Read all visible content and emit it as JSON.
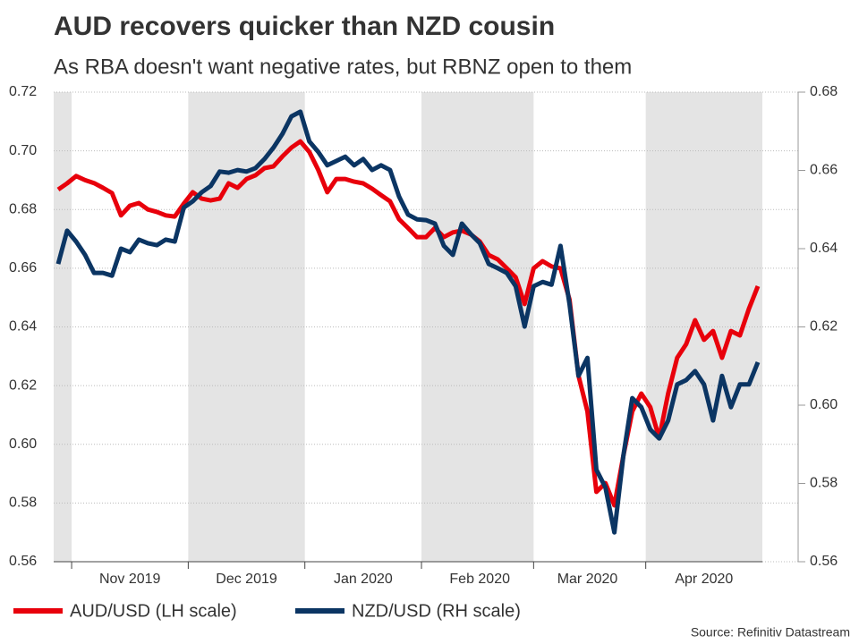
{
  "chart_data": {
    "type": "line",
    "title": "AUD recovers quicker than NZD cousin",
    "subtitle": "As RBA doesn't want negative rates, but RBNZ open to them",
    "source": "Source: Refinitiv Datastream",
    "categories": [
      null,
      null,
      null,
      null,
      null,
      null,
      null,
      null,
      "Nov 2019",
      null,
      null,
      null,
      null,
      null,
      null,
      null,
      null,
      null,
      null,
      null,
      null,
      "Dec 2019",
      null,
      null,
      null,
      null,
      null,
      null,
      null,
      null,
      null,
      null,
      null,
      null,
      "Jan 2020",
      null,
      null,
      null,
      null,
      null,
      null,
      null,
      null,
      null,
      null,
      null,
      null,
      "Feb 2020",
      null,
      null,
      null,
      null,
      null,
      null,
      null,
      null,
      null,
      null,
      null,
      "Mar 2020",
      null,
      null,
      null,
      null,
      null,
      null,
      null,
      null,
      null,
      null,
      null,
      null,
      "Apr 2020",
      null,
      null,
      null,
      null,
      null,
      null
    ],
    "series": [
      {
        "name": "AUD/USD (LH scale)",
        "color": "#e8000b",
        "axis": "y",
        "values": [
          0.6868,
          0.6889,
          0.6914,
          0.69,
          0.689,
          0.6874,
          0.6856,
          0.678,
          0.6813,
          0.6822,
          0.68,
          0.6792,
          0.678,
          0.6776,
          0.682,
          0.6859,
          0.6837,
          0.6831,
          0.6837,
          0.6889,
          0.6874,
          0.6904,
          0.6917,
          0.6941,
          0.6947,
          0.6981,
          0.7011,
          0.7032,
          0.6996,
          0.6935,
          0.6859,
          0.6904,
          0.6904,
          0.6895,
          0.6889,
          0.6871,
          0.6849,
          0.6828,
          0.6767,
          0.6737,
          0.6706,
          0.6706,
          0.6737,
          0.6706,
          0.6722,
          0.6728,
          0.6715,
          0.6691,
          0.6645,
          0.663,
          0.66,
          0.6569,
          0.6478,
          0.66,
          0.6624,
          0.6606,
          0.66,
          0.6493,
          0.6234,
          0.6112,
          0.5838,
          0.5868,
          0.5792,
          0.596,
          0.6112,
          0.6173,
          0.6127,
          0.6021,
          0.6173,
          0.6295,
          0.6341,
          0.6423,
          0.6356,
          0.6386,
          0.6295,
          0.6386,
          0.6371,
          0.6462,
          0.6539
        ]
      },
      {
        "name": "NZD/USD (RH scale)",
        "color": "#0b3563",
        "axis": "y2",
        "values": [
          0.6361,
          0.6446,
          0.6418,
          0.6384,
          0.6338,
          0.6338,
          0.6331,
          0.64,
          0.6391,
          0.6423,
          0.6414,
          0.6409,
          0.6423,
          0.6418,
          0.6505,
          0.6521,
          0.6544,
          0.656,
          0.6597,
          0.6594,
          0.6601,
          0.6597,
          0.6606,
          0.6629,
          0.6658,
          0.6693,
          0.6738,
          0.675,
          0.6674,
          0.6647,
          0.6613,
          0.6624,
          0.6635,
          0.6613,
          0.6629,
          0.6601,
          0.6613,
          0.6601,
          0.6533,
          0.6487,
          0.6475,
          0.6473,
          0.6464,
          0.6407,
          0.6384,
          0.6464,
          0.6437,
          0.6414,
          0.6361,
          0.635,
          0.6338,
          0.6304,
          0.6201,
          0.6304,
          0.6315,
          0.6308,
          0.6407,
          0.6258,
          0.6075,
          0.6121,
          0.5835,
          0.579,
          0.5675,
          0.587,
          0.6018,
          0.5995,
          0.5938,
          0.5915,
          0.5961,
          0.6053,
          0.6064,
          0.6087,
          0.6053,
          0.5961,
          0.6075,
          0.5995,
          0.6053,
          0.6053,
          0.611
        ]
      }
    ],
    "ylim": [
      0.56,
      0.72
    ],
    "yticks": [
      0.56,
      0.58,
      {
        "value": 0.6,
        "label": "0.60"
      },
      0.62,
      0.64,
      0.66,
      0.68,
      {
        "value": 0.7,
        "label": "0.70"
      },
      0.72
    ],
    "y2lim": [
      0.56,
      0.68
    ],
    "y2ticks": [
      0.56,
      0.58,
      {
        "value": 0.6,
        "label": "0.60"
      },
      0.62,
      0.64,
      0.66,
      0.68
    ],
    "grid": true
  }
}
